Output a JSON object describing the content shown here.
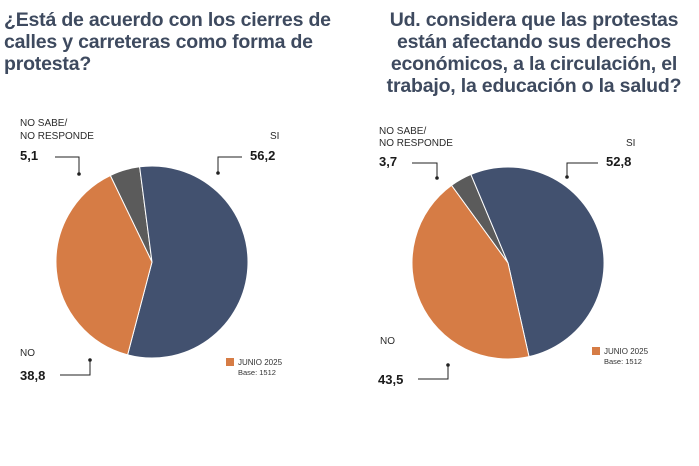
{
  "colors": {
    "si": "#42516f",
    "no": "#d67c45",
    "nosabe": "#5b5b5b",
    "title": "#3e4a5f"
  },
  "chart_data": [
    {
      "type": "pie",
      "title": "¿Está de acuerdo con los cierres de calles y carreteras como forma de protesta?",
      "slices": [
        {
          "key": "si",
          "label": "SI",
          "value": 56.2,
          "display": "56,2"
        },
        {
          "key": "no",
          "label": "NO",
          "value": 38.8,
          "display": "38,8"
        },
        {
          "key": "nosabe",
          "label_line1": "NO SABE/",
          "label_line2": "NO RESPONDE",
          "value": 5.1,
          "display": "5,1"
        }
      ],
      "legend": {
        "label": "JUNIO 2025",
        "base": "Base: 1512"
      }
    },
    {
      "type": "pie",
      "title": "Ud. considera que las protestas están afectando sus derechos económicos, a la circulación, el trabajo, la educación o la salud?",
      "slices": [
        {
          "key": "si",
          "label": "SI",
          "value": 52.8,
          "display": "52,8"
        },
        {
          "key": "no",
          "label": "NO",
          "value": 43.5,
          "display": "43,5"
        },
        {
          "key": "nosabe",
          "label_line1": "NO SABE/",
          "label_line2": "NO RESPONDE",
          "value": 3.7,
          "display": "3,7"
        }
      ],
      "legend": {
        "label": "JUNIO 2025",
        "base": "Base: 1512"
      }
    }
  ]
}
